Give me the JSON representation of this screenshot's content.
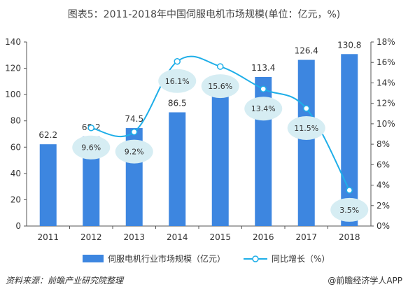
{
  "title": "图表5：2011-2018年中国伺服电机市场规模(单位：亿元，%)",
  "chart_data": {
    "type": "bar",
    "categories": [
      "2011",
      "2012",
      "2013",
      "2014",
      "2015",
      "2016",
      "2017",
      "2018"
    ],
    "series": [
      {
        "name": "伺服电机行业市场规模（亿元）",
        "type": "bar",
        "axis": "left",
        "values": [
          62.2,
          68.2,
          74.5,
          86.5,
          100.1,
          113.4,
          126.4,
          130.8
        ],
        "value_labels": [
          "62.2",
          "68.2",
          "74.5",
          "86.5",
          "",
          "113.4",
          "126.4",
          "130.8"
        ]
      },
      {
        "name": "同比增长（%）",
        "type": "line",
        "axis": "right",
        "values": [
          null,
          9.6,
          9.2,
          16.1,
          15.6,
          13.4,
          11.5,
          3.5
        ],
        "value_labels": [
          "",
          "9.6%",
          "9.2%",
          "16.1%",
          "15.6%",
          "13.4%",
          "11.5%",
          "3.5%"
        ]
      }
    ],
    "y_left": {
      "min": 0,
      "max": 140,
      "ticks": [
        "0",
        "20",
        "40",
        "60",
        "80",
        "100",
        "120",
        "140"
      ]
    },
    "y_right": {
      "min": 0,
      "max": 18,
      "ticks": [
        "0%",
        "2%",
        "4%",
        "6%",
        "8%",
        "10%",
        "12%",
        "14%",
        "16%",
        "18%"
      ]
    },
    "legend_position": "bottom",
    "grid": false,
    "colors": {
      "bar": "#3d86e0",
      "line": "#1eaee8",
      "bubble": "#d6edf3",
      "axis": "#555555"
    }
  },
  "footer": {
    "source": "资料来源：前瞻产业研究院整理",
    "brand": "@前瞻经济学人APP"
  }
}
